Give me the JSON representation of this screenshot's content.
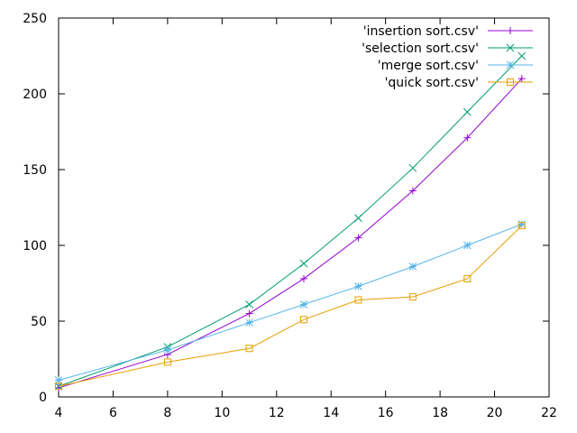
{
  "chart_data": {
    "type": "line",
    "title": "",
    "xlabel": "",
    "ylabel": "",
    "xlim": [
      4,
      22
    ],
    "ylim": [
      0,
      250
    ],
    "x_ticks": [
      "4",
      "6",
      "8",
      "10",
      "12",
      "14",
      "16",
      "18",
      "20",
      "22"
    ],
    "y_ticks": [
      "0",
      "50",
      "100",
      "150",
      "200",
      "250"
    ],
    "grid": false,
    "legend_position": "top-right",
    "series": [
      {
        "name": "'insertion sort.csv'",
        "color": "#9400d3",
        "marker": "plus",
        "x": [
          4,
          8,
          11,
          13,
          15,
          17,
          19,
          21
        ],
        "y": [
          6,
          28,
          55,
          78,
          105,
          136,
          171,
          210
        ]
      },
      {
        "name": "'selection sort.csv'",
        "color": "#009e73",
        "marker": "cross",
        "x": [
          4,
          8,
          11,
          13,
          15,
          17,
          19,
          21
        ],
        "y": [
          7,
          33,
          61,
          88,
          118,
          151,
          188,
          225
        ]
      },
      {
        "name": "'merge sort.csv'",
        "color": "#56b4e9",
        "marker": "star",
        "x": [
          4,
          8,
          11,
          13,
          15,
          17,
          19,
          21
        ],
        "y": [
          11,
          31,
          49,
          61,
          73,
          86,
          100,
          114
        ]
      },
      {
        "name": "'quick sort.csv'",
        "color": "#e69f00",
        "marker": "square",
        "x": [
          4,
          8,
          11,
          13,
          15,
          17,
          19,
          21
        ],
        "y": [
          7,
          23,
          32,
          51,
          64,
          66,
          78,
          113
        ]
      }
    ]
  }
}
